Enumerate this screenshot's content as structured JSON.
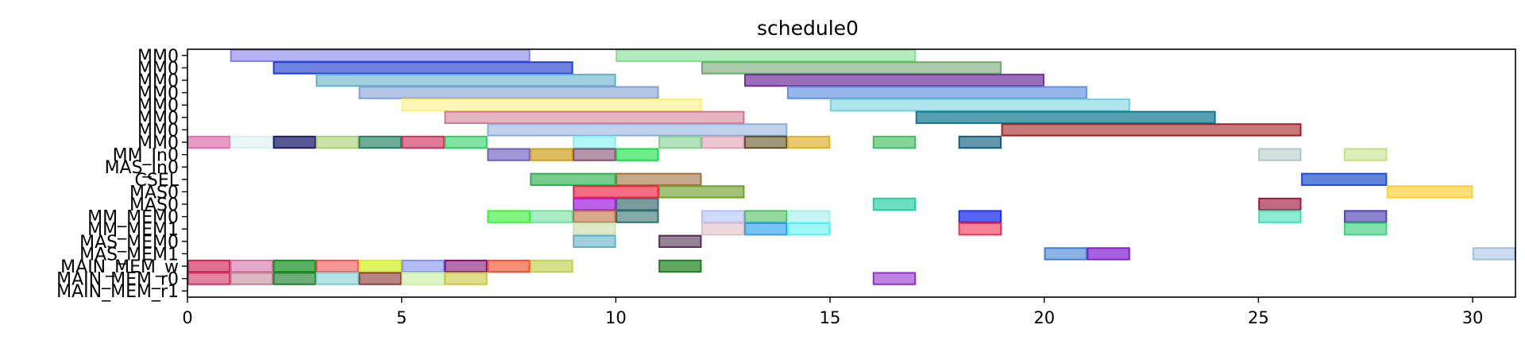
{
  "chart_data": {
    "type": "gantt",
    "title": "schedule0",
    "xlim": [
      0,
      31
    ],
    "x_ticks": [
      0,
      5,
      10,
      15,
      20,
      25,
      30
    ],
    "rows": [
      "MM0",
      "MM0",
      "MM0",
      "MM0",
      "MM0",
      "MM0",
      "MM0",
      "MM0",
      "MM_In0",
      "MAS_In0",
      "CSEL",
      "MAS0",
      "MAS0",
      "MM_MEM0",
      "MM_MEM1",
      "MAS_MEM0",
      "MAS_MEM1",
      "MAIN_MEM_w",
      "MAIN_MEM_r0",
      "MAIN_MEM_r1"
    ],
    "tasks": [
      {
        "row": 0,
        "start": 1,
        "end": 8,
        "color": "#8080f0",
        "alpha": 0.6
      },
      {
        "row": 0,
        "start": 10,
        "end": 17,
        "color": "#80e090",
        "alpha": 0.6
      },
      {
        "row": 1,
        "start": 2,
        "end": 9,
        "color": "#2040d0",
        "alpha": 0.65
      },
      {
        "row": 1,
        "start": 12,
        "end": 19,
        "color": "#70a870",
        "alpha": 0.6
      },
      {
        "row": 2,
        "start": 3,
        "end": 10,
        "color": "#60b0c8",
        "alpha": 0.6
      },
      {
        "row": 2,
        "start": 13,
        "end": 20,
        "color": "#7030a0",
        "alpha": 0.7
      },
      {
        "row": 3,
        "start": 4,
        "end": 11,
        "color": "#80a0d8",
        "alpha": 0.6
      },
      {
        "row": 3,
        "start": 14,
        "end": 21,
        "color": "#6090e0",
        "alpha": 0.65
      },
      {
        "row": 4,
        "start": 5,
        "end": 12,
        "color": "#fff070",
        "alpha": 0.5
      },
      {
        "row": 4,
        "start": 15,
        "end": 22,
        "color": "#70d0e0",
        "alpha": 0.55
      },
      {
        "row": 5,
        "start": 6,
        "end": 13,
        "color": "#d07890",
        "alpha": 0.55
      },
      {
        "row": 5,
        "start": 17,
        "end": 24,
        "color": "#107890",
        "alpha": 0.7
      },
      {
        "row": 6,
        "start": 7,
        "end": 14,
        "color": "#8cacd8",
        "alpha": 0.55
      },
      {
        "row": 6,
        "start": 19,
        "end": 26,
        "color": "#a02020",
        "alpha": 0.6
      },
      {
        "row": 7,
        "start": 0,
        "end": 1,
        "color": "#e070b0",
        "alpha": 0.7
      },
      {
        "row": 7,
        "start": 1,
        "end": 2,
        "color": "#d8f0f0",
        "alpha": 0.5
      },
      {
        "row": 7,
        "start": 2,
        "end": 3,
        "color": "#202070",
        "alpha": 0.75
      },
      {
        "row": 7,
        "start": 3,
        "end": 4,
        "color": "#a8d070",
        "alpha": 0.6
      },
      {
        "row": 7,
        "start": 4,
        "end": 5,
        "color": "#208060",
        "alpha": 0.65
      },
      {
        "row": 7,
        "start": 5,
        "end": 6,
        "color": "#d03060",
        "alpha": 0.65
      },
      {
        "row": 7,
        "start": 6,
        "end": 7,
        "color": "#30d060",
        "alpha": 0.6
      },
      {
        "row": 7,
        "start": 9,
        "end": 10,
        "color": "#80f0f0",
        "alpha": 0.6
      },
      {
        "row": 7,
        "start": 11,
        "end": 12,
        "color": "#80d090",
        "alpha": 0.6
      },
      {
        "row": 7,
        "start": 12,
        "end": 13,
        "color": "#e0a0b0",
        "alpha": 0.6
      },
      {
        "row": 7,
        "start": 13,
        "end": 14,
        "color": "#605020",
        "alpha": 0.6
      },
      {
        "row": 7,
        "start": 14,
        "end": 15,
        "color": "#e0b030",
        "alpha": 0.7
      },
      {
        "row": 7,
        "start": 16,
        "end": 17,
        "color": "#40c060",
        "alpha": 0.65
      },
      {
        "row": 7,
        "start": 18,
        "end": 19,
        "color": "#106080",
        "alpha": 0.65
      },
      {
        "row": 8,
        "start": 7,
        "end": 8,
        "color": "#7060c0",
        "alpha": 0.65
      },
      {
        "row": 8,
        "start": 8,
        "end": 9,
        "color": "#d0a020",
        "alpha": 0.7
      },
      {
        "row": 8,
        "start": 9,
        "end": 10,
        "color": "#805070",
        "alpha": 0.6
      },
      {
        "row": 8,
        "start": 10,
        "end": 11,
        "color": "#10e040",
        "alpha": 0.6
      },
      {
        "row": 8,
        "start": 25,
        "end": 26,
        "color": "#b0c8c8",
        "alpha": 0.55
      },
      {
        "row": 8,
        "start": 27,
        "end": 28,
        "color": "#c0e080",
        "alpha": 0.55
      },
      {
        "row": 10,
        "start": 8,
        "end": 10,
        "color": "#30b050",
        "alpha": 0.65
      },
      {
        "row": 10,
        "start": 10,
        "end": 12,
        "color": "#a07040",
        "alpha": 0.6
      },
      {
        "row": 10,
        "start": 26,
        "end": 28,
        "color": "#2050d0",
        "alpha": 0.7
      },
      {
        "row": 11,
        "start": 9,
        "end": 11,
        "color": "#f02040",
        "alpha": 0.65
      },
      {
        "row": 11,
        "start": 11,
        "end": 13,
        "color": "#70a030",
        "alpha": 0.65
      },
      {
        "row": 11,
        "start": 28,
        "end": 30,
        "color": "#ffd030",
        "alpha": 0.65
      },
      {
        "row": 12,
        "start": 9,
        "end": 10,
        "color": "#a020e0",
        "alpha": 0.7
      },
      {
        "row": 12,
        "start": 10,
        "end": 11,
        "color": "#407070",
        "alpha": 0.7
      },
      {
        "row": 12,
        "start": 16,
        "end": 17,
        "color": "#20d0a0",
        "alpha": 0.65
      },
      {
        "row": 12,
        "start": 25,
        "end": 26,
        "color": "#a01840",
        "alpha": 0.65
      },
      {
        "row": 13,
        "start": 7,
        "end": 8,
        "color": "#40f040",
        "alpha": 0.65
      },
      {
        "row": 13,
        "start": 8,
        "end": 9,
        "color": "#70e0a0",
        "alpha": 0.6
      },
      {
        "row": 13,
        "start": 9,
        "end": 10,
        "color": "#c07040",
        "alpha": 0.6
      },
      {
        "row": 13,
        "start": 10,
        "end": 11,
        "color": "#306f6f",
        "alpha": 0.6
      },
      {
        "row": 13,
        "start": 12,
        "end": 13,
        "color": "#b0c0ff",
        "alpha": 0.6
      },
      {
        "row": 13,
        "start": 13,
        "end": 14,
        "color": "#50c060",
        "alpha": 0.6
      },
      {
        "row": 13,
        "start": 14,
        "end": 15,
        "color": "#a0f0e8",
        "alpha": 0.6
      },
      {
        "row": 13,
        "start": 18,
        "end": 19,
        "color": "#2030f0",
        "alpha": 0.75
      },
      {
        "row": 13,
        "start": 25,
        "end": 26,
        "color": "#40e0b0",
        "alpha": 0.6
      },
      {
        "row": 13,
        "start": 27,
        "end": 28,
        "color": "#5040b0",
        "alpha": 0.65
      },
      {
        "row": 14,
        "start": 9,
        "end": 10,
        "color": "#d0e0b0",
        "alpha": 0.7
      },
      {
        "row": 14,
        "start": 12,
        "end": 13,
        "color": "#e0c0c8",
        "alpha": 0.6
      },
      {
        "row": 14,
        "start": 13,
        "end": 14,
        "color": "#30a0f0",
        "alpha": 0.65
      },
      {
        "row": 14,
        "start": 14,
        "end": 15,
        "color": "#50f0f0",
        "alpha": 0.55
      },
      {
        "row": 14,
        "start": 18,
        "end": 19,
        "color": "#f03050",
        "alpha": 0.6
      },
      {
        "row": 14,
        "start": 27,
        "end": 28,
        "color": "#40d080",
        "alpha": 0.65
      },
      {
        "row": 15,
        "start": 9,
        "end": 10,
        "color": "#60b0c8",
        "alpha": 0.6
      },
      {
        "row": 15,
        "start": 11,
        "end": 12,
        "color": "#503050",
        "alpha": 0.6
      },
      {
        "row": 16,
        "start": 20,
        "end": 21,
        "color": "#4080d0",
        "alpha": 0.6
      },
      {
        "row": 16,
        "start": 21,
        "end": 22,
        "color": "#8020d0",
        "alpha": 0.7
      },
      {
        "row": 16,
        "start": 30,
        "end": 31,
        "color": "#a0c0e0",
        "alpha": 0.55
      },
      {
        "row": 17,
        "start": 0,
        "end": 1,
        "color": "#d02050",
        "alpha": 0.65
      },
      {
        "row": 17,
        "start": 1,
        "end": 2,
        "color": "#d070a0",
        "alpha": 0.6
      },
      {
        "row": 17,
        "start": 2,
        "end": 3,
        "color": "#109020",
        "alpha": 0.7
      },
      {
        "row": 17,
        "start": 3,
        "end": 4,
        "color": "#f05050",
        "alpha": 0.6
      },
      {
        "row": 17,
        "start": 4,
        "end": 5,
        "color": "#d0f020",
        "alpha": 0.7
      },
      {
        "row": 17,
        "start": 5,
        "end": 6,
        "color": "#8090f0",
        "alpha": 0.6
      },
      {
        "row": 17,
        "start": 6,
        "end": 7,
        "color": "#801070",
        "alpha": 0.6
      },
      {
        "row": 17,
        "start": 7,
        "end": 8,
        "color": "#f05030",
        "alpha": 0.65
      },
      {
        "row": 17,
        "start": 8,
        "end": 9,
        "color": "#c0d050",
        "alpha": 0.65
      },
      {
        "row": 17,
        "start": 11,
        "end": 12,
        "color": "#208020",
        "alpha": 0.7
      },
      {
        "row": 18,
        "start": 0,
        "end": 1,
        "color": "#d03060",
        "alpha": 0.6
      },
      {
        "row": 18,
        "start": 1,
        "end": 2,
        "color": "#c08090",
        "alpha": 0.55
      },
      {
        "row": 18,
        "start": 2,
        "end": 3,
        "color": "#208030",
        "alpha": 0.65
      },
      {
        "row": 18,
        "start": 3,
        "end": 4,
        "color": "#80d0d0",
        "alpha": 0.6
      },
      {
        "row": 18,
        "start": 4,
        "end": 5,
        "color": "#904040",
        "alpha": 0.65
      },
      {
        "row": 18,
        "start": 5,
        "end": 6,
        "color": "#c8f0a0",
        "alpha": 0.6
      },
      {
        "row": 18,
        "start": 6,
        "end": 7,
        "color": "#c8c840",
        "alpha": 0.6
      },
      {
        "row": 18,
        "start": 16,
        "end": 17,
        "color": "#9030d0",
        "alpha": 0.6
      }
    ]
  }
}
